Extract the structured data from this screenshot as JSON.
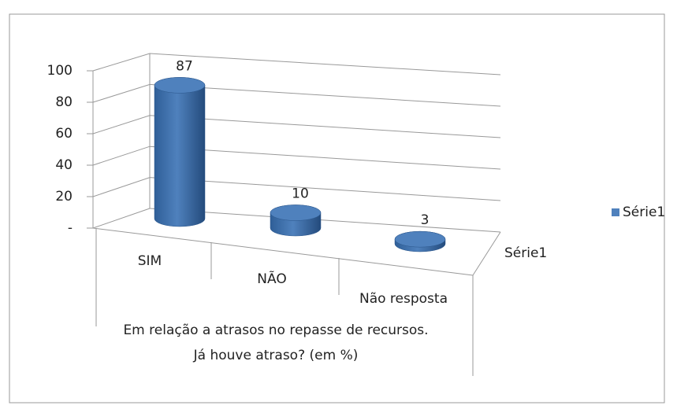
{
  "chart_data": {
    "type": "bar",
    "x_label": "Em relação a atrasos no repasse de recursos. Já houve atraso? (em %)",
    "categories": [
      "SIM",
      "NÃO",
      "Não resposta"
    ],
    "series": [
      {
        "name": "Série1",
        "color": "#4f81bd",
        "values": [
          87,
          10,
          3
        ]
      }
    ],
    "ylim": [
      0,
      100
    ],
    "yticks": [
      {
        "value": 0,
        "label": "-"
      },
      20,
      40,
      60,
      80,
      100
    ],
    "grid": true,
    "legend": "right"
  }
}
